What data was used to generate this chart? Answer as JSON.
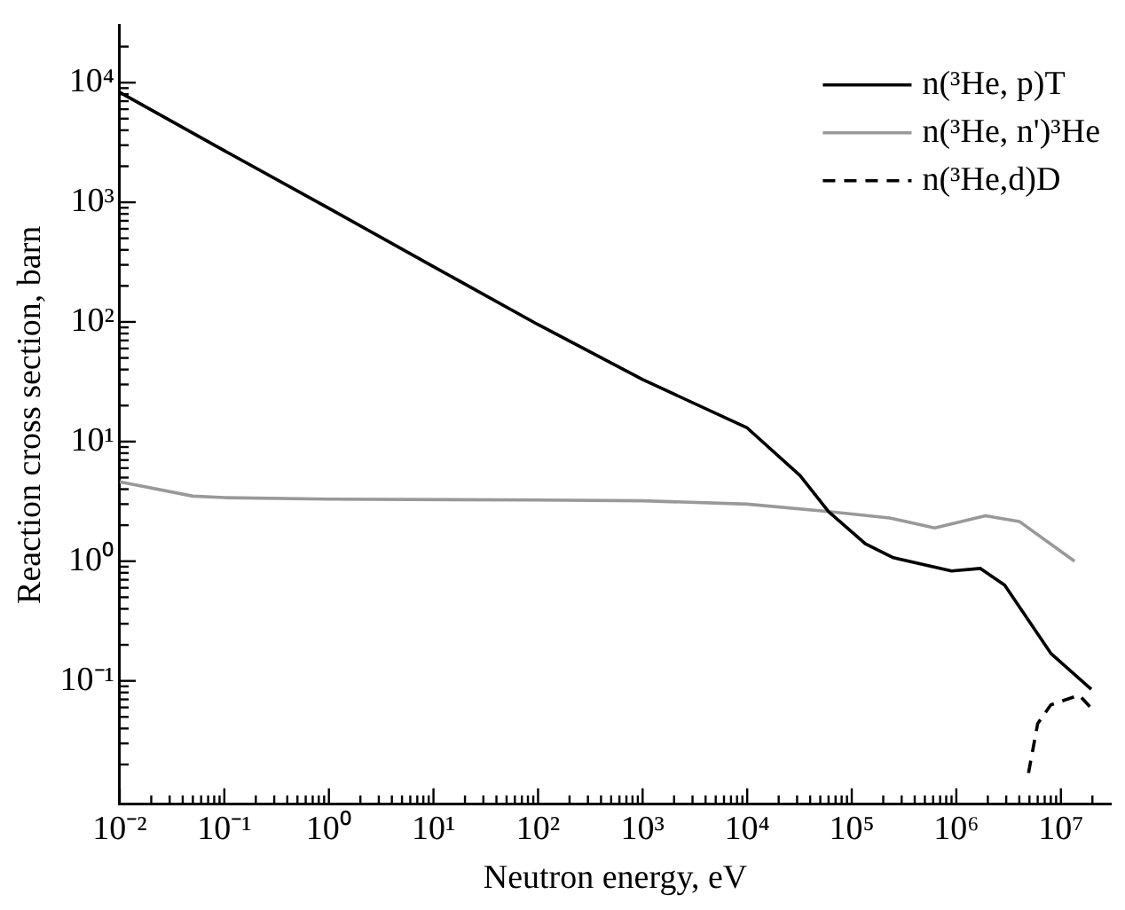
{
  "chart_data": {
    "type": "line",
    "xlabel": "Neutron energy, eV",
    "ylabel": "Reaction cross section, barn",
    "log": "xy",
    "legend": "top right",
    "grid": false,
    "marker": "none",
    "xlim": [
      0.01,
      30000000
    ],
    "ylim": [
      0.0093,
      30000
    ],
    "xticks": [
      {
        "value": 0.01,
        "label": "10⁻²"
      },
      {
        "value": 0.02,
        "label": null
      },
      {
        "value": 0.03,
        "label": null
      },
      {
        "value": 0.04,
        "label": null
      },
      {
        "value": 0.05,
        "label": null
      },
      {
        "value": 0.06,
        "label": null
      },
      {
        "value": 0.07,
        "label": null
      },
      {
        "value": 0.08,
        "label": null
      },
      {
        "value": 0.09,
        "label": null
      },
      {
        "value": 0.1,
        "label": "10⁻¹"
      },
      {
        "value": 0.2,
        "label": null
      },
      {
        "value": 0.3,
        "label": null
      },
      {
        "value": 0.4,
        "label": null
      },
      {
        "value": 0.5,
        "label": null
      },
      {
        "value": 0.6,
        "label": null
      },
      {
        "value": 0.7,
        "label": null
      },
      {
        "value": 0.8,
        "label": null
      },
      {
        "value": 0.9,
        "label": null
      },
      {
        "value": 1,
        "label": "10⁰"
      },
      {
        "value": 2,
        "label": null
      },
      {
        "value": 3,
        "label": null
      },
      {
        "value": 4,
        "label": null
      },
      {
        "value": 5,
        "label": null
      },
      {
        "value": 6,
        "label": null
      },
      {
        "value": 7,
        "label": null
      },
      {
        "value": 8,
        "label": null
      },
      {
        "value": 9,
        "label": null
      },
      {
        "value": 10,
        "label": "10¹"
      },
      {
        "value": 20,
        "label": null
      },
      {
        "value": 30,
        "label": null
      },
      {
        "value": 40,
        "label": null
      },
      {
        "value": 50,
        "label": null
      },
      {
        "value": 60,
        "label": null
      },
      {
        "value": 70,
        "label": null
      },
      {
        "value": 80,
        "label": null
      },
      {
        "value": 90,
        "label": null
      },
      {
        "value": 100,
        "label": "10²"
      },
      {
        "value": 200,
        "label": null
      },
      {
        "value": 300,
        "label": null
      },
      {
        "value": 400,
        "label": null
      },
      {
        "value": 500,
        "label": null
      },
      {
        "value": 600,
        "label": null
      },
      {
        "value": 700,
        "label": null
      },
      {
        "value": 800,
        "label": null
      },
      {
        "value": 900,
        "label": null
      },
      {
        "value": 1000,
        "label": "10³"
      },
      {
        "value": 2000,
        "label": null
      },
      {
        "value": 3000,
        "label": null
      },
      {
        "value": 4000,
        "label": null
      },
      {
        "value": 5000,
        "label": null
      },
      {
        "value": 6000,
        "label": null
      },
      {
        "value": 7000,
        "label": null
      },
      {
        "value": 8000,
        "label": null
      },
      {
        "value": 9000,
        "label": null
      },
      {
        "value": 10000,
        "label": "10⁴"
      },
      {
        "value": 20000,
        "label": null
      },
      {
        "value": 30000,
        "label": null
      },
      {
        "value": 40000,
        "label": null
      },
      {
        "value": 50000,
        "label": null
      },
      {
        "value": 60000,
        "label": null
      },
      {
        "value": 70000,
        "label": null
      },
      {
        "value": 80000,
        "label": null
      },
      {
        "value": 90000,
        "label": null
      },
      {
        "value": 100000,
        "label": "10⁵"
      },
      {
        "value": 200000,
        "label": null
      },
      {
        "value": 300000,
        "label": null
      },
      {
        "value": 400000,
        "label": null
      },
      {
        "value": 500000,
        "label": null
      },
      {
        "value": 600000,
        "label": null
      },
      {
        "value": 700000,
        "label": null
      },
      {
        "value": 800000,
        "label": null
      },
      {
        "value": 900000,
        "label": null
      },
      {
        "value": 1000000,
        "label": "10⁶"
      },
      {
        "value": 2000000,
        "label": null
      },
      {
        "value": 3000000,
        "label": null
      },
      {
        "value": 4000000,
        "label": null
      },
      {
        "value": 5000000,
        "label": null
      },
      {
        "value": 6000000,
        "label": null
      },
      {
        "value": 7000000,
        "label": null
      },
      {
        "value": 8000000,
        "label": null
      },
      {
        "value": 9000000,
        "label": null
      },
      {
        "value": 10000000,
        "label": "10⁷"
      },
      {
        "value": 20000000,
        "label": null
      }
    ],
    "yticks": [
      {
        "value": 0.02,
        "label": null
      },
      {
        "value": 0.03,
        "label": null
      },
      {
        "value": 0.04,
        "label": null
      },
      {
        "value": 0.05,
        "label": null
      },
      {
        "value": 0.06,
        "label": null
      },
      {
        "value": 0.07,
        "label": null
      },
      {
        "value": 0.08,
        "label": null
      },
      {
        "value": 0.09,
        "label": null
      },
      {
        "value": 0.1,
        "label": "10⁻¹"
      },
      {
        "value": 0.2,
        "label": null
      },
      {
        "value": 0.3,
        "label": null
      },
      {
        "value": 0.4,
        "label": null
      },
      {
        "value": 0.5,
        "label": null
      },
      {
        "value": 0.6,
        "label": null
      },
      {
        "value": 0.7,
        "label": null
      },
      {
        "value": 0.8,
        "label": null
      },
      {
        "value": 0.9,
        "label": null
      },
      {
        "value": 1,
        "label": "10⁰"
      },
      {
        "value": 2,
        "label": null
      },
      {
        "value": 3,
        "label": null
      },
      {
        "value": 4,
        "label": null
      },
      {
        "value": 5,
        "label": null
      },
      {
        "value": 6,
        "label": null
      },
      {
        "value": 7,
        "label": null
      },
      {
        "value": 8,
        "label": null
      },
      {
        "value": 9,
        "label": null
      },
      {
        "value": 10,
        "label": "10¹"
      },
      {
        "value": 20,
        "label": null
      },
      {
        "value": 30,
        "label": null
      },
      {
        "value": 40,
        "label": null
      },
      {
        "value": 50,
        "label": null
      },
      {
        "value": 60,
        "label": null
      },
      {
        "value": 70,
        "label": null
      },
      {
        "value": 80,
        "label": null
      },
      {
        "value": 90,
        "label": null
      },
      {
        "value": 100,
        "label": "10²"
      },
      {
        "value": 200,
        "label": null
      },
      {
        "value": 300,
        "label": null
      },
      {
        "value": 400,
        "label": null
      },
      {
        "value": 500,
        "label": null
      },
      {
        "value": 600,
        "label": null
      },
      {
        "value": 700,
        "label": null
      },
      {
        "value": 800,
        "label": null
      },
      {
        "value": 900,
        "label": null
      },
      {
        "value": 1000,
        "label": "10³"
      },
      {
        "value": 2000,
        "label": null
      },
      {
        "value": 3000,
        "label": null
      },
      {
        "value": 4000,
        "label": null
      },
      {
        "value": 5000,
        "label": null
      },
      {
        "value": 6000,
        "label": null
      },
      {
        "value": 7000,
        "label": null
      },
      {
        "value": 8000,
        "label": null
      },
      {
        "value": 9000,
        "label": null
      },
      {
        "value": 10000,
        "label": "10⁴"
      },
      {
        "value": 20000,
        "label": null
      }
    ],
    "series": [
      {
        "name": "n(³He, p)T",
        "color": "#000000",
        "line_style": "solid",
        "x": [
          0.01,
          0.1,
          1,
          10,
          100,
          1000,
          10000,
          32000,
          60000,
          135000,
          250000,
          900000,
          1700000,
          2900000,
          8000000,
          19500000
        ],
        "values": [
          8300,
          2700,
          890,
          290,
          95,
          33,
          13,
          5.2,
          2.6,
          1.4,
          1.07,
          0.83,
          0.87,
          0.63,
          0.17,
          0.085
        ]
      },
      {
        "name": "n(³He, n')³He",
        "color": "#999999",
        "line_style": "solid",
        "x": [
          0.01,
          0.05,
          0.1,
          1,
          100,
          1000,
          10000,
          60000,
          230000,
          620000,
          1900000,
          4000000,
          13500000
        ],
        "values": [
          4.6,
          3.5,
          3.4,
          3.3,
          3.25,
          3.2,
          3.0,
          2.6,
          2.3,
          1.9,
          2.4,
          2.15,
          1.0
        ]
      },
      {
        "name": "n(³He,d)D",
        "color": "#000000",
        "line_style": "dashed",
        "x": [
          4900000,
          6000000,
          8000000,
          15000000,
          19500000
        ],
        "values": [
          0.017,
          0.044,
          0.063,
          0.076,
          0.059
        ]
      }
    ]
  }
}
